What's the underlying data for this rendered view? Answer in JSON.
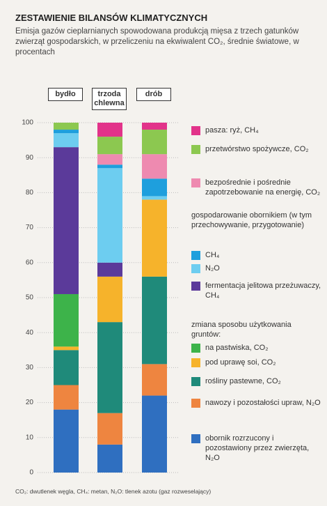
{
  "title": "ZESTAWIENIE BILANSÓW KLIMATYCZNYCH",
  "subtitle": "Emisja gazów cieplarnianych spowodowana produkcją mięsa z trzech gatunków zwierząt gospodarskich, w przeliczeniu na ekwiwalent CO₂, średnie światowe, w procentach",
  "footnote": "CO₂: dwutlenek węgla, CH₄: metan, N₂O: tlenek azotu (gaz rozweselający)",
  "chart_data": {
    "type": "stacked_bar",
    "categories": [
      "bydło",
      "trzoda chlewna",
      "drób"
    ],
    "ylim": [
      0,
      100
    ],
    "yticks": [
      0,
      10,
      20,
      30,
      40,
      50,
      60,
      70,
      80,
      90,
      100
    ],
    "grid": true,
    "legend_heading_manure": "gospodarowanie obornikiem (w tym przechowywanie, przygotowanie)",
    "legend_heading_land": "zmiana sposobu użytkowania gruntów:",
    "series": [
      {
        "name": "obornik rozrzucony i pozostawiony przez zwierzęta, N₂O",
        "color": "#2f6fc0",
        "values": [
          18,
          8,
          22
        ]
      },
      {
        "name": "nawozy i pozostałości upraw, N₂O",
        "color": "#ee8540",
        "values": [
          7,
          9,
          9
        ]
      },
      {
        "name": "rośliny pastewne, CO₂",
        "color": "#1f8a7a",
        "values": [
          10,
          26,
          25
        ]
      },
      {
        "name": "pod uprawę soi, CO₂",
        "color": "#f6b32b",
        "values": [
          1,
          13,
          22
        ]
      },
      {
        "name": "na pastwiska, CO₂",
        "color": "#3db34a",
        "values": [
          15,
          0,
          0
        ]
      },
      {
        "name": "fermentacja jelitowa przeżuwaczy, CH₄",
        "color": "#5b3a9a",
        "values": [
          42,
          4,
          0
        ]
      },
      {
        "name": "N₂O",
        "color": "#6dcdf0",
        "values": [
          4,
          27,
          1
        ]
      },
      {
        "name": "CH₄",
        "color": "#1e9fdd",
        "values": [
          1,
          1,
          5
        ]
      },
      {
        "name": "bezpośrednie i pośrednie zapotrzebowanie na energię, CO₂",
        "color": "#ee8ab0",
        "values": [
          0,
          3,
          7
        ]
      },
      {
        "name": "przetwórstwo spożywcze, CO₂",
        "color": "#8cc850",
        "values": [
          2,
          5,
          7
        ]
      },
      {
        "name": "pasza: ryż, CH₄",
        "color": "#e2338a",
        "values": [
          0,
          4,
          2
        ]
      }
    ]
  }
}
